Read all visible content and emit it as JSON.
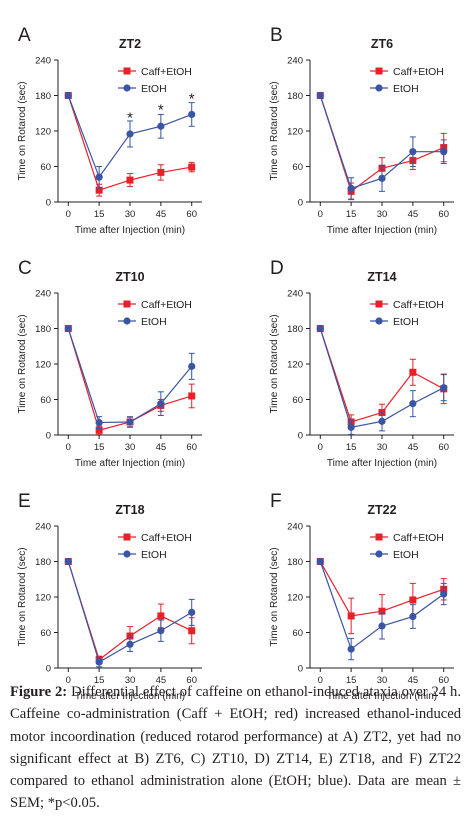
{
  "figure": {
    "caption_label": "Figure 2:",
    "caption_text": "Differential effect of caffeine on ethanol-induced ataxia over 24 h. Caffeine co-administration (Caff + EtOH; red) increased ethanol-induced motor incoordination (reduced rotarod performance) at A) ZT2, yet had no significant effect at B) ZT6, C) ZT10, D) ZT14, E) ZT18, and F) ZT22 compared to ethanol administration alone (EtOH; blue). Data are mean ± SEM; *p<0.05."
  },
  "colors": {
    "caff": "#e8202a",
    "etoh": "#3a55a4"
  },
  "chart_data": [
    {
      "panel": "A",
      "type": "line",
      "title": "ZT2",
      "xlabel": "Time after Injection (min)",
      "ylabel": "Time on Rotarod (sec)",
      "x": [
        0,
        15,
        30,
        45,
        60
      ],
      "xlim": [
        -5,
        65
      ],
      "ylim": [
        0,
        240
      ],
      "yticks": [
        0,
        60,
        120,
        180,
        240
      ],
      "legend": "top-right",
      "series": [
        {
          "name": "Caff+EtOH",
          "marker": "square",
          "values": [
            180,
            20,
            37,
            50,
            59
          ],
          "sem": [
            0,
            10,
            11,
            13,
            8
          ]
        },
        {
          "name": "EtOH",
          "marker": "circle",
          "values": [
            180,
            42,
            115,
            128,
            148
          ],
          "sem": [
            0,
            18,
            22,
            20,
            20
          ]
        }
      ],
      "annotations": [
        {
          "x": 30,
          "y": 150,
          "text": "*"
        },
        {
          "x": 45,
          "y": 163,
          "text": "*"
        },
        {
          "x": 60,
          "y": 182,
          "text": "*"
        }
      ]
    },
    {
      "panel": "B",
      "type": "line",
      "title": "ZT6",
      "xlabel": "Time after Injection (min)",
      "ylabel": "Time on Rotarod (sec)",
      "x": [
        0,
        15,
        30,
        45,
        60
      ],
      "xlim": [
        -5,
        65
      ],
      "ylim": [
        0,
        240
      ],
      "yticks": [
        0,
        60,
        120,
        180,
        240
      ],
      "legend": "top-right",
      "series": [
        {
          "name": "Caff+EtOH",
          "marker": "square",
          "values": [
            180,
            18,
            57,
            70,
            92
          ],
          "sem": [
            0,
            14,
            18,
            15,
            24
          ]
        },
        {
          "name": "EtOH",
          "marker": "circle",
          "values": [
            180,
            23,
            40,
            85,
            85
          ],
          "sem": [
            0,
            18,
            22,
            25,
            20
          ]
        }
      ],
      "annotations": []
    },
    {
      "panel": "C",
      "type": "line",
      "title": "ZT10",
      "xlabel": "Time after Injection (min)",
      "ylabel": "Time on Rotarod (sec)",
      "x": [
        0,
        15,
        30,
        45,
        60
      ],
      "xlim": [
        -5,
        65
      ],
      "ylim": [
        0,
        240
      ],
      "yticks": [
        0,
        60,
        120,
        180,
        240
      ],
      "legend": "top-right",
      "series": [
        {
          "name": "Caff+EtOH",
          "marker": "square",
          "values": [
            180,
            8,
            22,
            50,
            66
          ],
          "sem": [
            0,
            7,
            8,
            10,
            20
          ]
        },
        {
          "name": "EtOH",
          "marker": "circle",
          "values": [
            180,
            21,
            22,
            53,
            116
          ],
          "sem": [
            0,
            10,
            9,
            20,
            22
          ]
        }
      ],
      "annotations": []
    },
    {
      "panel": "D",
      "type": "line",
      "title": "ZT14",
      "xlabel": "Time after Injection (min)",
      "ylabel": "Time on Rotarod (sec)",
      "x": [
        0,
        15,
        30,
        45,
        60
      ],
      "xlim": [
        -5,
        65
      ],
      "ylim": [
        0,
        240
      ],
      "yticks": [
        0,
        60,
        120,
        180,
        240
      ],
      "legend": "top-right",
      "series": [
        {
          "name": "Caff+EtOH",
          "marker": "square",
          "values": [
            180,
            22,
            38,
            106,
            78
          ],
          "sem": [
            0,
            12,
            14,
            22,
            25
          ]
        },
        {
          "name": "EtOH",
          "marker": "circle",
          "values": [
            180,
            13,
            23,
            53,
            80
          ],
          "sem": [
            0,
            12,
            16,
            22,
            22
          ]
        }
      ],
      "annotations": []
    },
    {
      "panel": "E",
      "type": "line",
      "title": "ZT18",
      "xlabel": "Time after Injection (min)",
      "ylabel": "Time on Rotarod (sec)",
      "x": [
        0,
        15,
        30,
        45,
        60
      ],
      "xlim": [
        -5,
        65
      ],
      "ylim": [
        0,
        240
      ],
      "yticks": [
        0,
        60,
        120,
        180,
        240
      ],
      "legend": "top-right",
      "series": [
        {
          "name": "Caff+EtOH",
          "marker": "square",
          "values": [
            180,
            14,
            54,
            88,
            63
          ],
          "sem": [
            0,
            6,
            16,
            20,
            22
          ]
        },
        {
          "name": "EtOH",
          "marker": "circle",
          "values": [
            180,
            10,
            40,
            63,
            94
          ],
          "sem": [
            0,
            8,
            12,
            18,
            22
          ]
        }
      ],
      "annotations": []
    },
    {
      "panel": "F",
      "type": "line",
      "title": "ZT22",
      "xlabel": "Time after Injection (min)",
      "ylabel": "Time on Rotarod (sec)",
      "x": [
        0,
        15,
        30,
        45,
        60
      ],
      "xlim": [
        -5,
        65
      ],
      "ylim": [
        0,
        240
      ],
      "yticks": [
        0,
        60,
        120,
        180,
        240
      ],
      "legend": "top-right",
      "series": [
        {
          "name": "Caff+EtOH",
          "marker": "square",
          "values": [
            180,
            88,
            96,
            115,
            133
          ],
          "sem": [
            0,
            30,
            28,
            28,
            18
          ]
        },
        {
          "name": "EtOH",
          "marker": "circle",
          "values": [
            180,
            32,
            71,
            87,
            125
          ],
          "sem": [
            0,
            18,
            22,
            20,
            18
          ]
        }
      ],
      "annotations": []
    }
  ]
}
